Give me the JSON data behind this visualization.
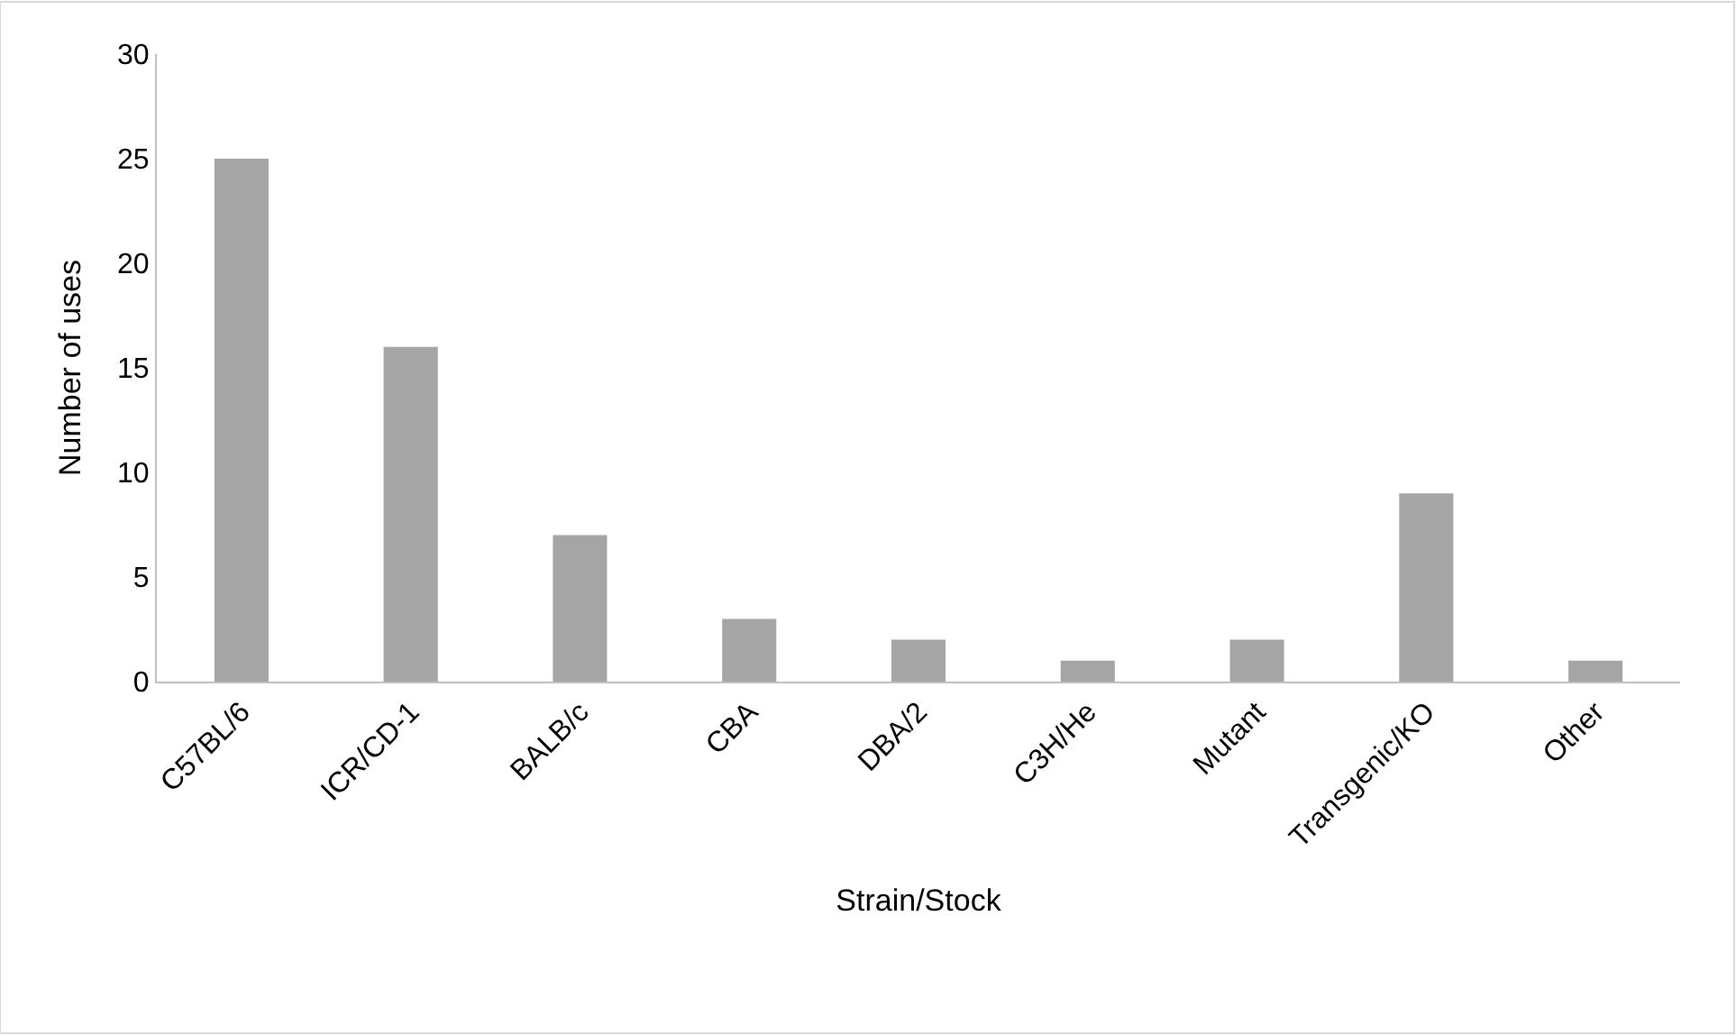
{
  "chart_data": {
    "type": "bar",
    "xlabel": "Strain/Stock",
    "ylabel": "Number of uses",
    "categories": [
      "C57BL/6",
      "ICR/CD-1",
      "BALB/c",
      "CBA",
      "DBA/2",
      "C3H/He",
      "Mutant",
      "Transgenic/KO",
      "Other"
    ],
    "values": [
      25,
      16,
      7,
      3,
      2,
      1,
      2,
      9,
      1
    ],
    "color": "#a5a5a5",
    "ylim": [
      0,
      30
    ],
    "yticks": [
      0,
      5,
      10,
      15,
      20,
      25,
      30
    ]
  }
}
